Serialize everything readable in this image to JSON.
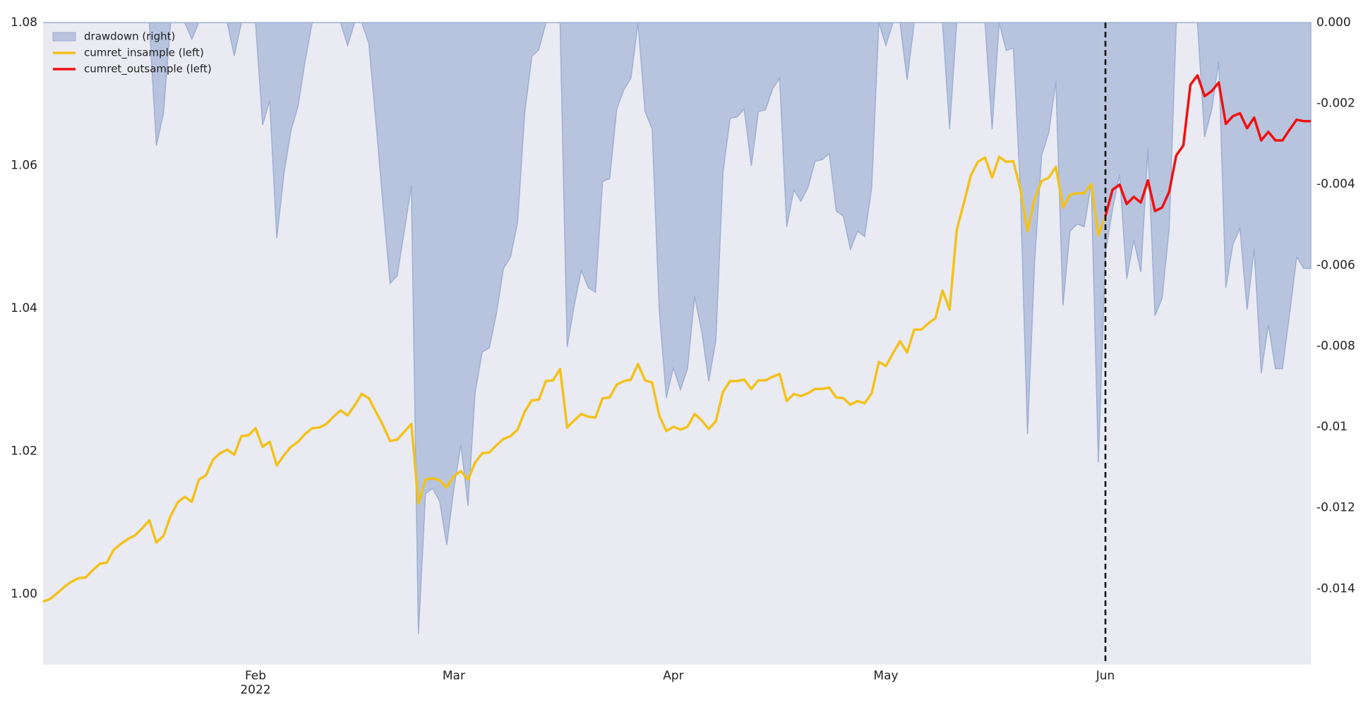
{
  "chart_data": {
    "type": "line",
    "categories": [
      null,
      null,
      null,
      null,
      null,
      null,
      null,
      null,
      null,
      null,
      null,
      null,
      null,
      null,
      null,
      null,
      null,
      null,
      null,
      null,
      null,
      null,
      null,
      null,
      null,
      null,
      null,
      null,
      null,
      null,
      "Feb\n2022",
      null,
      null,
      null,
      null,
      null,
      null,
      null,
      null,
      null,
      null,
      null,
      null,
      null,
      null,
      null,
      null,
      null,
      null,
      null,
      null,
      null,
      null,
      null,
      null,
      null,
      null,
      null,
      "Mar",
      null,
      null,
      null,
      null,
      null,
      null,
      null,
      null,
      null,
      null,
      null,
      null,
      null,
      null,
      null,
      null,
      null,
      null,
      null,
      null,
      null,
      null,
      null,
      null,
      null,
      null,
      null,
      null,
      null,
      null,
      "Apr",
      null,
      null,
      null,
      null,
      null,
      null,
      null,
      null,
      null,
      null,
      null,
      null,
      null,
      null,
      null,
      null,
      null,
      null,
      null,
      null,
      null,
      null,
      null,
      null,
      null,
      null,
      null,
      null,
      null,
      "May",
      null,
      null,
      null,
      null,
      null,
      null,
      null,
      null,
      null,
      null,
      null,
      null,
      null,
      null,
      null,
      null,
      null,
      null,
      null,
      null,
      null,
      null,
      null,
      null,
      null,
      null,
      null,
      null,
      null,
      null,
      "Jun",
      null,
      null,
      null,
      null,
      null,
      null,
      null,
      null,
      null,
      null,
      null,
      null,
      null,
      null,
      null,
      null,
      null,
      null,
      null,
      null,
      null,
      null,
      null,
      null,
      null,
      null,
      null,
      null,
      null
    ],
    "series": [
      {
        "name": "drawdown (right)",
        "type": "area",
        "axis": "y2",
        "color": "#b8c4de",
        "values": [
          0,
          0,
          0,
          0,
          0,
          0,
          0,
          0,
          0,
          0,
          0,
          0,
          0,
          0,
          0,
          0,
          -0.00304,
          -0.00224,
          0,
          0,
          0,
          -0.00041,
          0,
          0,
          0,
          0,
          0,
          -0.00082,
          0,
          0,
          0,
          -0.00253,
          -0.00192,
          -0.00533,
          -0.00375,
          -0.00267,
          -0.00207,
          -0.00095,
          0,
          0,
          0,
          0,
          0,
          -0.00056,
          0,
          0,
          -0.00052,
          -0.00246,
          -0.00451,
          -0.00645,
          -0.00626,
          -0.00516,
          -0.00403,
          -0.01512,
          -0.01165,
          -0.01152,
          -0.01184,
          -0.01292,
          -0.01152,
          -0.01044,
          -0.01195,
          -0.00915,
          -0.00815,
          -0.00805,
          -0.0072,
          -0.00608,
          -0.0058,
          -0.00494,
          -0.00224,
          -0.00084,
          -0.00067,
          0,
          0,
          0,
          -0.00802,
          -0.00699,
          -0.00613,
          -0.00656,
          -0.00667,
          -0.00393,
          -0.00386,
          -0.00214,
          -0.00166,
          -0.00138,
          0,
          -0.0022,
          -0.00263,
          -0.0071,
          -0.00928,
          -0.00854,
          -0.00908,
          -0.00856,
          -0.00677,
          -0.00764,
          -0.00887,
          -0.00785,
          -0.00371,
          -0.00237,
          -0.00233,
          -0.00214,
          -0.00354,
          -0.0022,
          -0.00216,
          -0.00164,
          -0.00138,
          -0.00505,
          -0.00414,
          -0.00442,
          -0.00408,
          -0.00343,
          -0.00339,
          -0.00324,
          -0.00466,
          -0.00479,
          -0.00561,
          -0.00516,
          -0.00529,
          -0.00408,
          0,
          -0.00056,
          0,
          0,
          -0.00142,
          0,
          0,
          0,
          0,
          0,
          -0.00263,
          0,
          0,
          0,
          0,
          0,
          -0.00263,
          0,
          -0.00069,
          -0.00063,
          -0.00419,
          -0.01018,
          -0.00591,
          -0.00328,
          -0.00272,
          -0.00145,
          -0.00699,
          -0.00516,
          -0.00498,
          -0.00505,
          -0.00397,
          -0.01087,
          -0.0057,
          -0.00462,
          -0.00375,
          -0.00634,
          -0.00537,
          -0.00617,
          -0.00311,
          -0.00725,
          -0.00682,
          -0.00509,
          0,
          0,
          0,
          0,
          -0.00283,
          -0.00216,
          -0.00095,
          -0.00656,
          -0.00548,
          -0.00509,
          -0.0071,
          -0.00559,
          -0.00867,
          -0.00746,
          -0.00856,
          -0.00856,
          -0.0072,
          -0.0058,
          -0.00608,
          -0.00608
        ]
      },
      {
        "name": "cumret_insample (left)",
        "type": "line",
        "color": "#f2c21b",
        "values": [
          0.9989,
          0.9993,
          1.0001,
          1.001,
          1.0017,
          1.0022,
          1.0023,
          1.0033,
          1.0042,
          1.0044,
          1.0062,
          1.007,
          1.0077,
          1.0082,
          1.0092,
          1.0103,
          1.0072,
          1.0081,
          1.0109,
          1.0128,
          1.0136,
          1.0129,
          1.016,
          1.0166,
          1.0188,
          1.0197,
          1.0202,
          1.0195,
          1.0221,
          1.0222,
          1.0232,
          1.0206,
          1.0213,
          1.018,
          1.0194,
          1.0206,
          1.0213,
          1.0224,
          1.0232,
          1.0233,
          1.0238,
          1.0248,
          1.0257,
          1.025,
          1.0264,
          1.028,
          1.0274,
          1.0255,
          1.0236,
          1.0214,
          1.0216,
          1.0227,
          1.0238,
          1.0127,
          1.016,
          1.0162,
          1.0159,
          1.0149,
          1.0165,
          1.0172,
          1.016,
          1.0184,
          1.0197,
          1.0198,
          1.0208,
          1.0217,
          1.0221,
          1.023,
          1.0255,
          1.0271,
          1.0272,
          1.0298,
          1.0299,
          1.0315,
          1.0233,
          1.0243,
          1.0252,
          1.0248,
          1.0247,
          1.0274,
          1.0275,
          1.0293,
          1.0298,
          1.03,
          1.0322,
          1.0299,
          1.0296,
          1.025,
          1.0228,
          1.0234,
          1.023,
          1.0234,
          1.0252,
          1.0243,
          1.0231,
          1.0242,
          1.0283,
          1.0298,
          1.0298,
          1.03,
          1.0287,
          1.0299,
          1.0299,
          1.0304,
          1.0308,
          1.027,
          1.028,
          1.0277,
          1.0281,
          1.0287,
          1.0287,
          1.0289,
          1.0275,
          1.0274,
          1.0265,
          1.027,
          1.0267,
          1.0281,
          1.0325,
          1.0319,
          1.0337,
          1.0354,
          1.0338,
          1.037,
          1.037,
          1.0379,
          1.0386,
          1.0425,
          1.0398,
          1.0509,
          1.0547,
          1.0586,
          1.0605,
          1.0611,
          1.0583,
          1.0612,
          1.0605,
          1.0606,
          1.0566,
          1.0508,
          1.0553,
          1.0578,
          1.0583,
          1.0598,
          1.0541,
          1.0559,
          1.0561,
          1.0561,
          1.0574,
          1.0502,
          1.0529,
          null,
          null,
          null,
          null,
          null,
          null,
          null,
          null,
          null,
          null,
          null,
          null,
          null,
          null,
          null,
          null,
          null,
          null,
          null,
          null,
          null,
          null,
          null,
          null,
          null,
          null,
          null,
          null,
          null
        ]
      },
      {
        "name": "cumret_outsample (left)",
        "type": "line",
        "color": "#ee1111",
        "values": [
          null,
          null,
          null,
          null,
          null,
          null,
          null,
          null,
          null,
          null,
          null,
          null,
          null,
          null,
          null,
          null,
          null,
          null,
          null,
          null,
          null,
          null,
          null,
          null,
          null,
          null,
          null,
          null,
          null,
          null,
          null,
          null,
          null,
          null,
          null,
          null,
          null,
          null,
          null,
          null,
          null,
          null,
          null,
          null,
          null,
          null,
          null,
          null,
          null,
          null,
          null,
          null,
          null,
          null,
          null,
          null,
          null,
          null,
          null,
          null,
          null,
          null,
          null,
          null,
          null,
          null,
          null,
          null,
          null,
          null,
          null,
          null,
          null,
          null,
          null,
          null,
          null,
          null,
          null,
          null,
          null,
          null,
          null,
          null,
          null,
          null,
          null,
          null,
          null,
          null,
          null,
          null,
          null,
          null,
          null,
          null,
          null,
          null,
          null,
          null,
          null,
          null,
          null,
          null,
          null,
          null,
          null,
          null,
          null,
          null,
          null,
          null,
          null,
          null,
          null,
          null,
          null,
          null,
          null,
          null,
          null,
          null,
          null,
          null,
          null,
          null,
          null,
          null,
          null,
          null,
          null,
          null,
          null,
          null,
          null,
          null,
          null,
          null,
          null,
          null,
          null,
          null,
          null,
          null,
          null,
          null,
          null,
          null,
          null,
          null,
          1.0529,
          1.0566,
          1.0573,
          1.0546,
          1.0556,
          1.0548,
          1.0579,
          1.0536,
          1.0541,
          1.0563,
          1.0614,
          1.0628,
          1.0713,
          1.0726,
          1.0697,
          1.0704,
          1.0716,
          1.0658,
          1.0669,
          1.0673,
          1.0652,
          1.0667,
          1.0635,
          1.0647,
          1.0635,
          1.0635,
          1.065,
          1.0664,
          1.0662,
          1.0662
        ]
      }
    ],
    "ylim": [
      0.9901,
      1.08
    ],
    "yticks": [
      {
        "value": 1,
        "label": "1.00"
      },
      1.02,
      1.04,
      1.06,
      1.08
    ],
    "y2lim": [
      -0.01588,
      0
    ],
    "y2ticks": [
      {
        "value": 0,
        "label": "0.000"
      },
      -0.002,
      -0.004,
      -0.006,
      -0.008,
      -0.01,
      -0.012,
      -0.014
    ],
    "grid": false,
    "legend": "upper left"
  }
}
